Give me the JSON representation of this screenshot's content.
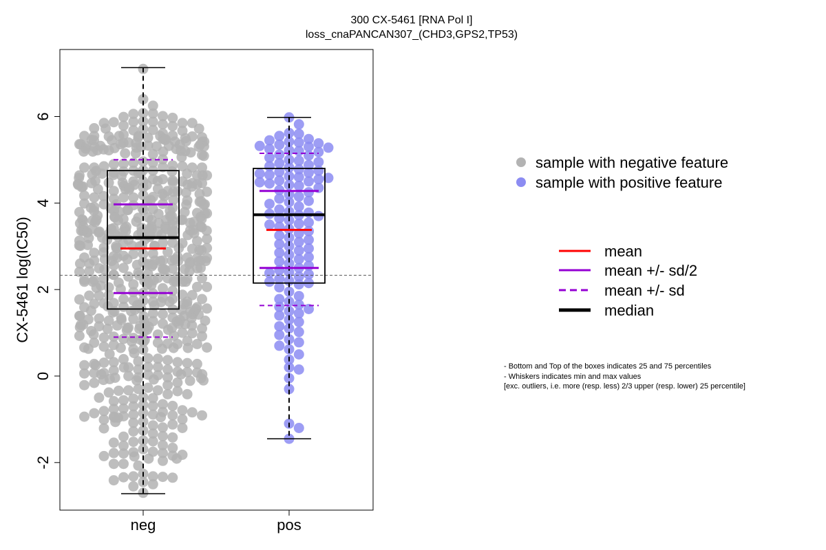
{
  "chart_data": {
    "type": "scatter",
    "subtype": "beeswarm-boxplot",
    "title": "300 CX-5461 [RNA Pol I]",
    "subtitle": "loss_cnaPANCAN307_(CHD3,GPS2,TP53)",
    "ylabel": "CX-5461 log(IC50)",
    "xlabel": "",
    "ylim": [
      -3.1,
      7.55
    ],
    "yticks": [
      -2,
      0,
      2,
      4,
      6
    ],
    "categories": [
      "neg",
      "pos"
    ],
    "reference_line": 2.33,
    "grid": false,
    "legend_placement": "right",
    "groups": [
      {
        "category": "neg",
        "color": "#b3b3b3",
        "box": {
          "q1": 1.55,
          "median": 3.2,
          "q3": 4.75,
          "whisker_low": -2.72,
          "whisker_high": 7.13
        },
        "mean": 2.95,
        "mean_minus_half_sd": 1.92,
        "mean_plus_half_sd": 3.97,
        "mean_minus_sd": 0.9,
        "mean_plus_sd": 5.0,
        "n_points": 640,
        "points_y": []
      },
      {
        "category": "pos",
        "color": "#8c8cf2",
        "box": {
          "q1": 2.15,
          "median": 3.73,
          "q3": 4.8,
          "whisker_low": -1.45,
          "whisker_high": 5.98
        },
        "mean": 3.38,
        "mean_minus_half_sd": 2.5,
        "mean_plus_half_sd": 4.28,
        "mean_minus_sd": 1.63,
        "mean_plus_sd": 5.15,
        "n_points": 130,
        "points_y": [
          5.98,
          5.82,
          5.62,
          5.6,
          5.55,
          5.48,
          5.45,
          5.42,
          5.4,
          5.38,
          5.35,
          5.32,
          5.3,
          5.28,
          5.25,
          5.22,
          5.2,
          5.18,
          5.12,
          5.1,
          5.05,
          5.0,
          4.98,
          4.95,
          4.92,
          4.88,
          4.85,
          4.82,
          4.78,
          4.75,
          4.72,
          4.7,
          4.68,
          4.65,
          4.62,
          4.6,
          4.58,
          4.55,
          4.52,
          4.5,
          4.48,
          4.45,
          4.42,
          4.4,
          4.35,
          4.3,
          4.25,
          4.2,
          4.15,
          4.1,
          4.05,
          4.02,
          3.98,
          3.92,
          3.85,
          3.8,
          3.78,
          3.75,
          3.72,
          3.7,
          3.65,
          3.6,
          3.55,
          3.52,
          3.5,
          3.45,
          3.4,
          3.35,
          3.3,
          3.25,
          3.2,
          3.15,
          3.1,
          3.05,
          3.0,
          2.95,
          2.9,
          2.85,
          2.8,
          2.75,
          2.7,
          2.65,
          2.6,
          2.55,
          2.5,
          2.45,
          2.4,
          2.38,
          2.35,
          2.3,
          2.25,
          2.2,
          2.18,
          2.15,
          2.12,
          2.05,
          1.95,
          1.85,
          1.78,
          1.72,
          1.65,
          1.6,
          1.55,
          1.5,
          1.45,
          1.4,
          1.3,
          1.25,
          1.15,
          1.1,
          1.02,
          0.95,
          0.85,
          0.78,
          0.7,
          0.62,
          0.5,
          0.38,
          0.2,
          0.15,
          -0.05,
          -0.3,
          -1.1,
          -1.2,
          -1.45
        ]
      }
    ]
  },
  "legend": {
    "points": [
      {
        "label": "sample with negative feature",
        "color": "#b3b3b3"
      },
      {
        "label": "sample with positive feature",
        "color": "#8c8cf2"
      }
    ],
    "lines": [
      {
        "label": "mean",
        "color": "#ff0000",
        "style": "solid"
      },
      {
        "label": "mean +/- sd/2",
        "color": "#9400d3",
        "style": "solid"
      },
      {
        "label": "mean +/- sd",
        "color": "#9400d3",
        "style": "dashed"
      },
      {
        "label": "median",
        "color": "#000000",
        "style": "solid-thick"
      }
    ]
  },
  "notes": [
    "- Bottom and Top of the boxes indicates 25 and 75 percentiles",
    "- Whiskers indicates min and max values",
    "[exc. outliers, i.e. more (resp. less) 2/3 upper (resp. lower) 25 percentile]"
  ]
}
